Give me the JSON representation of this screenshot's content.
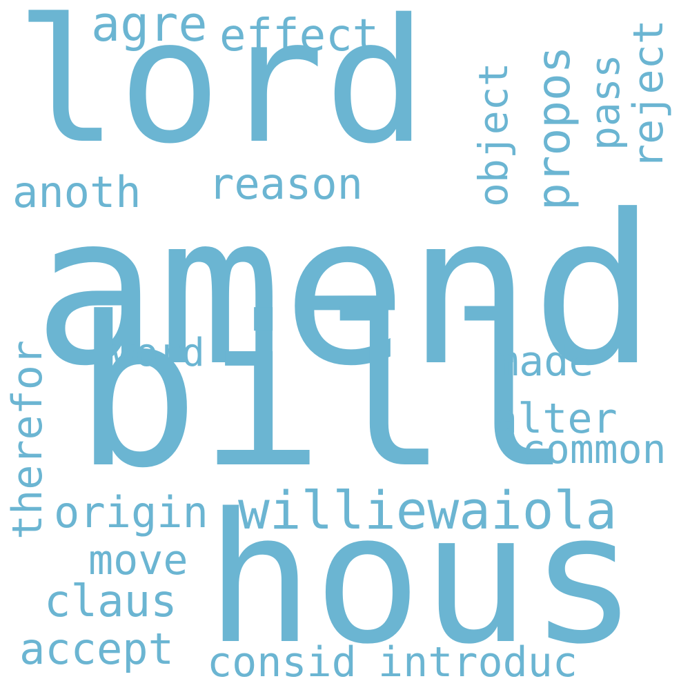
{
  "cloud": {
    "color": "#6bb5d2",
    "background": "#ffffff",
    "words": {
      "amend": "amend",
      "bill": "bill",
      "lord": "lord",
      "hous": "hous",
      "williewaiola": "williewaiola",
      "agre": "agre",
      "effect": "effect",
      "anoth": "anoth",
      "reason": "reason",
      "word": "word",
      "made": "made",
      "alter": "alter",
      "common": "common",
      "origin": "origin",
      "move": "move",
      "claus": "claus",
      "accept": "accept",
      "consid": "consid",
      "introduc": "introduc",
      "object": "object",
      "propos": "propos",
      "pass": "pass",
      "reject": "reject",
      "therefor": "therefor"
    }
  }
}
